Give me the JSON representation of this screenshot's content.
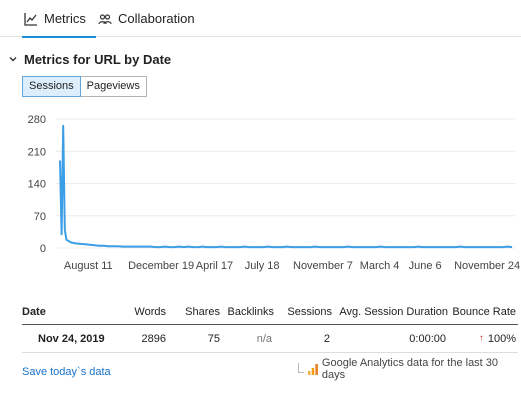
{
  "tabs": [
    {
      "label": "Metrics",
      "active": true,
      "icon": "line-chart-icon"
    },
    {
      "label": "Collaboration",
      "active": false,
      "icon": "users-icon"
    }
  ],
  "section": {
    "title": "Metrics for URL by Date"
  },
  "toggle": [
    {
      "label": "Sessions",
      "active": true
    },
    {
      "label": "Pageviews",
      "active": false
    }
  ],
  "colors": {
    "accent": "#1b8fd6",
    "line": "#3b9ee6",
    "arrow_up": "#e0352b",
    "link": "#1a73c8",
    "ga_orange": "#f39c12"
  },
  "chart_data": {
    "type": "line",
    "y_ticks": [
      "280",
      "210",
      "140",
      "70",
      "0"
    ],
    "ylim": [
      0,
      280
    ],
    "x_ticks": [
      "August 11",
      "December 19",
      "April 17",
      "July 18",
      "November 7",
      "March 4",
      "June 6",
      "November 24"
    ],
    "xlabel": "",
    "ylabel": "",
    "grid": true,
    "series": [
      {
        "values": [
          190,
          30,
          265,
          40,
          18,
          12,
          10,
          9,
          8,
          7,
          6,
          5,
          5,
          4,
          4,
          4,
          3,
          3,
          3,
          3,
          3,
          3,
          3,
          2,
          2,
          3,
          2,
          2,
          3,
          2,
          3,
          2,
          2,
          3,
          2,
          2,
          2,
          3,
          2,
          2,
          2,
          2,
          3,
          2,
          2,
          2,
          2,
          3,
          2,
          2,
          2,
          3,
          2,
          2,
          2,
          2,
          2,
          3,
          2,
          2,
          2,
          2,
          2,
          2,
          3,
          2,
          2,
          2,
          2,
          2,
          2,
          3,
          2,
          2,
          2,
          2,
          2,
          2,
          2,
          3,
          2,
          2,
          2,
          2,
          2,
          2,
          2,
          2,
          3,
          2,
          2,
          2,
          2,
          2,
          2,
          2,
          2,
          2,
          3,
          2
        ]
      }
    ]
  },
  "table": {
    "headers": {
      "date": "Date",
      "words": "Words",
      "shares": "Shares",
      "backlinks": "Backlinks",
      "sessions": "Sessions",
      "asd": "Avg. Session Duration",
      "bounce": "Bounce Rate"
    },
    "row": {
      "date": "Nov 24, 2019",
      "words": "2896",
      "shares": "75",
      "backlinks": "n/a",
      "sessions": "2",
      "asd": "0:00:00",
      "bounce": "100%",
      "bounce_arrow": "↑"
    }
  },
  "footer": {
    "save_link": "Save today`s data",
    "ga_note": "Google Analytics data for the last 30 days"
  }
}
